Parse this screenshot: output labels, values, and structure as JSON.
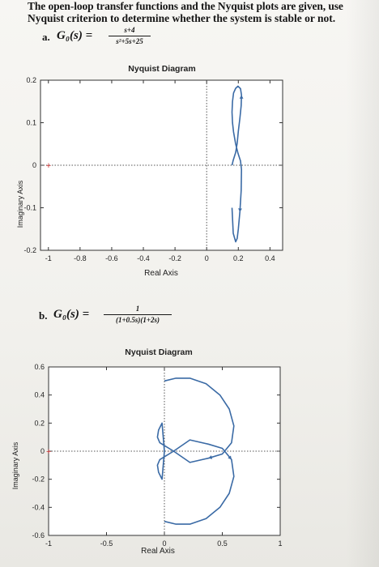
{
  "problem": {
    "intro_line1": "The open-loop transfer functions and the Nyquist plots are given, use",
    "intro_line2": "Nyquist criterion to determine whether the system is stable or not."
  },
  "part_a": {
    "label": "a.",
    "lhs": "G₀(s) =",
    "numerator": "s+4",
    "denominator": "s²+5s+25"
  },
  "part_b": {
    "label": "b.",
    "lhs": "G₀(s) =",
    "numerator": "1",
    "denominator": "(1+0.5s)(1+2s)"
  },
  "colors": {
    "curve": "#3a6aa5",
    "axes": "#333333",
    "dotted": "#555555"
  },
  "chart_data": [
    {
      "type": "line",
      "title": "Nyquist Diagram",
      "xlabel": "Real Axis",
      "ylabel": "Imaginary Axis",
      "xlim": [
        -1.05,
        0.48
      ],
      "ylim": [
        -0.2,
        0.2
      ],
      "xticks": [
        "-1",
        "-0.8",
        "-0.6",
        "-0.4",
        "-0.2",
        "0",
        "0.2",
        "0.4"
      ],
      "yticks": [
        "0.2",
        "0.1",
        "0",
        "-0.1",
        "-0.2"
      ],
      "critical_point": [
        -1,
        0
      ],
      "series": [
        {
          "description_points": "Nyquist contour of (s+4)/(s^2+5s+25), positive and negative frequencies",
          "x": [
            0.16,
            0.168,
            0.183,
            0.193,
            0.2,
            0.21,
            0.218,
            0.22,
            0.214,
            0.198,
            0.183,
            0.17,
            0.163,
            0.16,
            0.163,
            0.17,
            0.183,
            0.198,
            0.214,
            0.22,
            0.218,
            0.21,
            0.2,
            0.193,
            0.183,
            0.168,
            0.16
          ],
          "y": [
            0.0,
            0.012,
            0.03,
            0.052,
            0.08,
            0.11,
            0.14,
            0.165,
            0.18,
            0.186,
            0.181,
            0.17,
            0.15,
            0.125,
            0.1,
            0.078,
            0.05,
            0.028,
            0.01,
            -0.01,
            -0.06,
            -0.11,
            -0.15,
            -0.172,
            -0.18,
            -0.16,
            -0.1
          ]
        }
      ]
    },
    {
      "type": "line",
      "title": "Nyquist Diagram",
      "xlabel": "Real Axis",
      "ylabel": "Imaginary Axis",
      "xlim": [
        -1,
        1
      ],
      "ylim": [
        -0.6,
        0.6
      ],
      "xticks": [
        "-1",
        "-0.5",
        "0",
        "0.5",
        "1"
      ],
      "yticks": [
        "0.6",
        "0.4",
        "0.2",
        "0",
        "-0.2",
        "-0.4",
        "-0.6"
      ],
      "critical_point": [
        -1,
        0
      ],
      "series": [
        {
          "x": [
            0.0,
            0.1,
            0.22,
            0.36,
            0.48,
            0.56,
            0.6,
            0.58,
            0.5,
            0.38,
            0.22,
            0.08,
            0.0,
            -0.04,
            -0.06,
            -0.05,
            -0.02,
            0.0,
            -0.02,
            -0.05,
            -0.06,
            -0.04,
            0.0,
            0.08,
            0.22,
            0.38,
            0.5,
            0.58,
            0.6,
            0.56,
            0.48,
            0.36,
            0.22,
            0.1,
            0.0
          ],
          "y": [
            0.5,
            0.52,
            0.52,
            0.48,
            0.4,
            0.3,
            0.18,
            0.06,
            -0.02,
            -0.05,
            -0.08,
            0.0,
            0.04,
            0.06,
            0.1,
            0.15,
            0.2,
            0.0,
            -0.2,
            -0.15,
            -0.1,
            -0.06,
            -0.04,
            0.0,
            0.08,
            0.05,
            0.02,
            -0.06,
            -0.18,
            -0.3,
            -0.4,
            -0.48,
            -0.52,
            -0.52,
            -0.5
          ]
        }
      ]
    }
  ]
}
